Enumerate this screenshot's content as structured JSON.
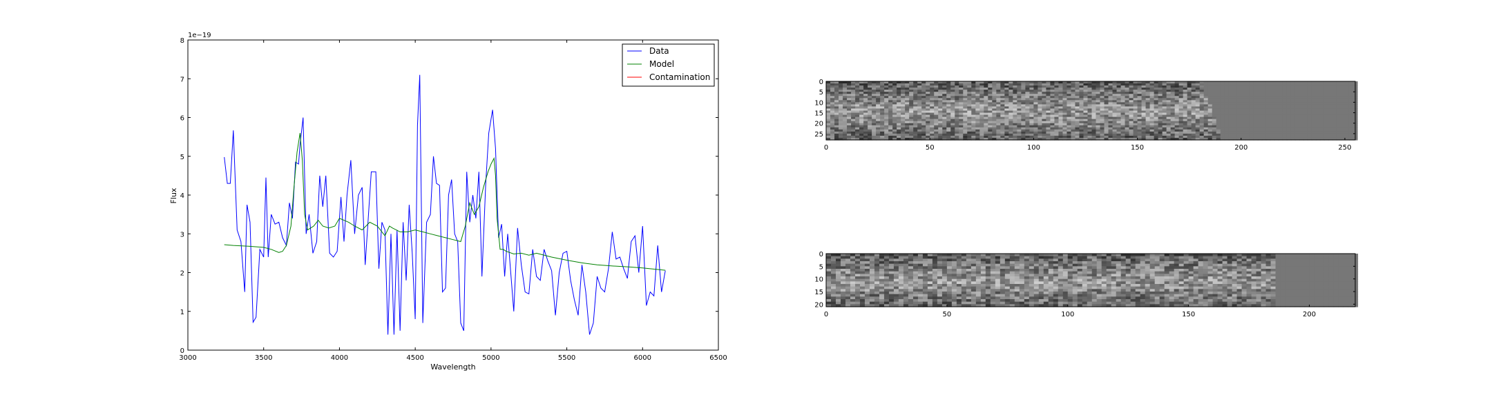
{
  "chart_data": [
    {
      "type": "line",
      "xlabel": "Wavelength",
      "ylabel": "Flux",
      "offset_text": "1e−19",
      "xlim": [
        3000,
        6500
      ],
      "ylim": [
        0,
        8
      ],
      "xticks": [
        3000,
        3500,
        4000,
        4500,
        5000,
        5500,
        6000,
        6500
      ],
      "yticks": [
        0,
        1,
        2,
        3,
        4,
        5,
        6,
        7,
        8
      ],
      "legend_position": "top-right",
      "series": [
        {
          "name": "Data",
          "color": "#0000ff",
          "x": [
            3240,
            3260,
            3280,
            3300,
            3325,
            3350,
            3375,
            3390,
            3410,
            3430,
            3450,
            3475,
            3500,
            3515,
            3530,
            3550,
            3575,
            3600,
            3625,
            3650,
            3670,
            3690,
            3710,
            3730,
            3740,
            3760,
            3780,
            3800,
            3825,
            3850,
            3870,
            3890,
            3910,
            3935,
            3960,
            3985,
            4010,
            4030,
            4050,
            4075,
            4100,
            4125,
            4150,
            4170,
            4190,
            4210,
            4240,
            4260,
            4280,
            4300,
            4320,
            4340,
            4360,
            4380,
            4400,
            4420,
            4440,
            4460,
            4480,
            4500,
            4515,
            4530,
            4550,
            4575,
            4600,
            4620,
            4640,
            4660,
            4680,
            4700,
            4720,
            4740,
            4760,
            4780,
            4800,
            4820,
            4840,
            4860,
            4880,
            4900,
            4920,
            4940,
            4965,
            4985,
            5010,
            5030,
            5050,
            5070,
            5090,
            5110,
            5130,
            5150,
            5175,
            5200,
            5225,
            5250,
            5275,
            5300,
            5325,
            5350,
            5375,
            5400,
            5425,
            5450,
            5475,
            5500,
            5525,
            5550,
            5575,
            5600,
            5625,
            5650,
            5675,
            5700,
            5725,
            5750,
            5775,
            5800,
            5825,
            5850,
            5875,
            5900,
            5925,
            5950,
            5975,
            6000,
            6025,
            6050,
            6075,
            6100,
            6125,
            6150
          ],
          "y": [
            4.98,
            4.3,
            4.3,
            5.67,
            3.1,
            2.8,
            1.5,
            3.75,
            3.3,
            0.72,
            0.85,
            2.6,
            2.4,
            4.45,
            2.4,
            3.5,
            3.25,
            3.3,
            2.9,
            2.7,
            3.8,
            3.4,
            4.85,
            4.8,
            5.3,
            6.0,
            3.0,
            3.5,
            2.5,
            2.8,
            4.5,
            3.7,
            4.5,
            2.5,
            2.4,
            2.55,
            3.95,
            2.8,
            4.0,
            4.9,
            3.0,
            4.0,
            4.2,
            2.2,
            3.4,
            4.6,
            4.6,
            2.1,
            3.3,
            3.1,
            0.4,
            3.0,
            0.4,
            3.1,
            0.5,
            3.3,
            1.8,
            3.75,
            2.5,
            0.8,
            5.8,
            7.1,
            0.7,
            3.3,
            3.5,
            5.0,
            4.3,
            4.25,
            1.5,
            1.6,
            4.0,
            4.4,
            3.0,
            2.8,
            0.7,
            0.5,
            4.6,
            3.3,
            4.0,
            3.4,
            4.6,
            1.9,
            4.3,
            5.6,
            6.2,
            5.2,
            2.9,
            3.25,
            1.9,
            3.0,
            2.0,
            1.0,
            3.15,
            2.2,
            1.5,
            1.45,
            2.6,
            1.9,
            1.8,
            2.6,
            2.3,
            2.05,
            0.9,
            2.0,
            2.5,
            2.55,
            1.8,
            1.3,
            0.9,
            2.2,
            1.5,
            0.4,
            0.7,
            1.9,
            1.6,
            1.5,
            2.1,
            3.05,
            2.35,
            2.4,
            2.1,
            1.85,
            2.8,
            2.95,
            2.0,
            3.2,
            1.15,
            1.5,
            1.4,
            2.7,
            1.5,
            2.05
          ],
          "linewidth": 1
        },
        {
          "name": "Model",
          "color": "#008000",
          "x": [
            3240,
            3300,
            3400,
            3500,
            3550,
            3600,
            3625,
            3650,
            3680,
            3700,
            3720,
            3740,
            3755,
            3770,
            3790,
            3810,
            3830,
            3860,
            3890,
            3930,
            3970,
            4000,
            4030,
            4060,
            4100,
            4150,
            4200,
            4250,
            4300,
            4330,
            4350,
            4400,
            4450,
            4500,
            4550,
            4600,
            4650,
            4700,
            4750,
            4800,
            4830,
            4860,
            4890,
            4920,
            4950,
            4980,
            5000,
            5020,
            5030,
            5040,
            5060,
            5080,
            5100,
            5150,
            5200,
            5250,
            5300,
            5400,
            5500,
            5600,
            5700,
            5800,
            5900,
            6000,
            6100,
            6150
          ],
          "y": [
            2.72,
            2.7,
            2.68,
            2.65,
            2.6,
            2.52,
            2.55,
            2.7,
            3.2,
            4.2,
            5.1,
            5.6,
            4.9,
            3.5,
            3.1,
            3.15,
            3.2,
            3.35,
            3.2,
            3.15,
            3.2,
            3.4,
            3.35,
            3.3,
            3.2,
            3.1,
            3.3,
            3.2,
            2.95,
            3.2,
            3.15,
            3.05,
            3.05,
            3.1,
            3.05,
            3.0,
            2.95,
            2.9,
            2.85,
            2.8,
            3.2,
            3.8,
            3.5,
            3.7,
            4.2,
            4.6,
            4.8,
            4.95,
            4.5,
            3.4,
            2.6,
            2.6,
            2.55,
            2.48,
            2.5,
            2.45,
            2.5,
            2.4,
            2.32,
            2.25,
            2.2,
            2.17,
            2.15,
            2.12,
            2.08,
            2.06
          ],
          "linewidth": 1
        },
        {
          "name": "Contamination",
          "color": "#ff0000",
          "x": [],
          "y": [],
          "linewidth": 1
        }
      ]
    },
    {
      "type": "heatmap",
      "colormap": "gray",
      "xlim": [
        0,
        255
      ],
      "ylim": [
        28,
        0
      ],
      "xticks": [
        0,
        50,
        100,
        150,
        200,
        250
      ],
      "yticks": [
        0,
        5,
        10,
        15,
        20,
        25
      ],
      "masked_region_start_x": 190,
      "masked_value_gray": "#777777"
    },
    {
      "type": "heatmap",
      "colormap": "gray",
      "xlim": [
        0,
        219
      ],
      "ylim": [
        21,
        0
      ],
      "xticks": [
        0,
        50,
        100,
        150,
        200
      ],
      "yticks": [
        0,
        5,
        10,
        15,
        20
      ],
      "masked_region_start_x": 185,
      "masked_value_gray": "#777777"
    }
  ]
}
